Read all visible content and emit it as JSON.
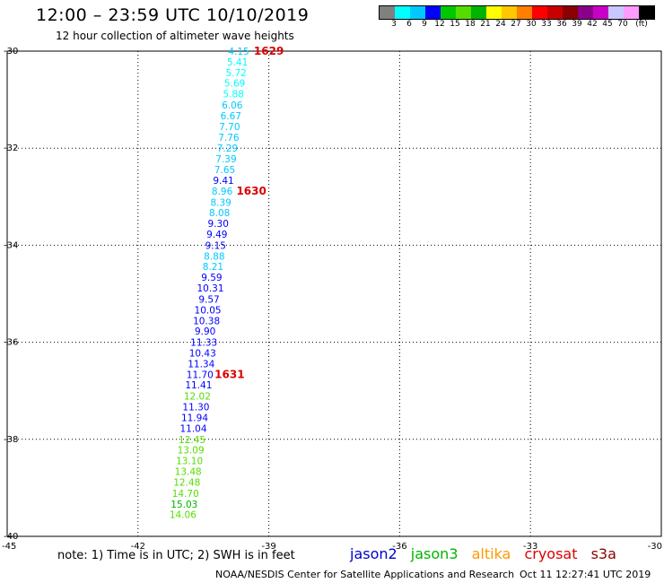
{
  "header": {
    "title": "12:00 – 23:59 UTC 10/10/2019",
    "subtitle": "12 hour collection of altimeter wave heights"
  },
  "legend": {
    "colors": [
      "#808080",
      "#00ffff",
      "#00c8ff",
      "#0000ff",
      "#00c800",
      "#55dd00",
      "#00b400",
      "#ffff00",
      "#ffc800",
      "#ff7f00",
      "#ff0000",
      "#c80000",
      "#8b0000",
      "#8b008b",
      "#c800c8",
      "#c8c8ff",
      "#ff9bff",
      "#000000"
    ],
    "labels": [
      "3",
      "6",
      "9",
      "12",
      "15",
      "18",
      "21",
      "24",
      "27",
      "30",
      "33",
      "36",
      "39",
      "42",
      "45",
      "70",
      "(ft)"
    ]
  },
  "chart_data": {
    "type": "scatter",
    "xlim": [
      -45,
      -30
    ],
    "ylim": [
      -40,
      -30
    ],
    "x_ticks": [
      "-42",
      "-39",
      "-36",
      "-33"
    ],
    "y_ticks": [
      "-30",
      "-32",
      "-34",
      "-36",
      "-38",
      "-40"
    ],
    "corner_labels": {
      "left": "-45",
      "right": "-30"
    },
    "points": [
      {
        "lon": -39.69,
        "lat": -30.0,
        "swh": "4.15",
        "color": "#00c8ff"
      },
      {
        "lon": -39.72,
        "lat": -30.22,
        "swh": "5.41",
        "color": "#00ffff"
      },
      {
        "lon": -39.75,
        "lat": -30.44,
        "swh": "5.72",
        "color": "#00ffff"
      },
      {
        "lon": -39.78,
        "lat": -30.66,
        "swh": "5.69",
        "color": "#00ffff"
      },
      {
        "lon": -39.81,
        "lat": -30.88,
        "swh": "5.88",
        "color": "#00ffff"
      },
      {
        "lon": -39.84,
        "lat": -31.11,
        "swh": "6.06",
        "color": "#00c8ff"
      },
      {
        "lon": -39.87,
        "lat": -31.33,
        "swh": "6.67",
        "color": "#00c8ff"
      },
      {
        "lon": -39.9,
        "lat": -31.55,
        "swh": "7.70",
        "color": "#00c8ff"
      },
      {
        "lon": -39.92,
        "lat": -31.77,
        "swh": "7.76",
        "color": "#00c8ff"
      },
      {
        "lon": -39.95,
        "lat": -32.0,
        "swh": "7.29",
        "color": "#00c8ff"
      },
      {
        "lon": -39.98,
        "lat": -32.22,
        "swh": "7.39",
        "color": "#00c8ff"
      },
      {
        "lon": -40.01,
        "lat": -32.44,
        "swh": "7.65",
        "color": "#00c8ff"
      },
      {
        "lon": -40.04,
        "lat": -32.66,
        "swh": "9.41",
        "color": "#0000ff"
      },
      {
        "lon": -40.07,
        "lat": -32.88,
        "swh": "8.96",
        "color": "#00c8ff"
      },
      {
        "lon": -40.1,
        "lat": -33.11,
        "swh": "8.39",
        "color": "#00c8ff"
      },
      {
        "lon": -40.13,
        "lat": -33.33,
        "swh": "8.08",
        "color": "#00c8ff"
      },
      {
        "lon": -40.16,
        "lat": -33.55,
        "swh": "9.30",
        "color": "#0000ff"
      },
      {
        "lon": -40.19,
        "lat": -33.77,
        "swh": "9.49",
        "color": "#0000ff"
      },
      {
        "lon": -40.22,
        "lat": -34.0,
        "swh": "9.15",
        "color": "#0000ff"
      },
      {
        "lon": -40.25,
        "lat": -34.22,
        "swh": "8.88",
        "color": "#00c8ff"
      },
      {
        "lon": -40.28,
        "lat": -34.44,
        "swh": "8.21",
        "color": "#00c8ff"
      },
      {
        "lon": -40.31,
        "lat": -34.66,
        "swh": "9.59",
        "color": "#0000ff"
      },
      {
        "lon": -40.34,
        "lat": -34.88,
        "swh": "10.31",
        "color": "#0000ff"
      },
      {
        "lon": -40.37,
        "lat": -35.11,
        "swh": "9.57",
        "color": "#0000ff"
      },
      {
        "lon": -40.4,
        "lat": -35.33,
        "swh": "10.05",
        "color": "#0000ff"
      },
      {
        "lon": -40.43,
        "lat": -35.55,
        "swh": "10.38",
        "color": "#0000ff"
      },
      {
        "lon": -40.46,
        "lat": -35.77,
        "swh": "9.90",
        "color": "#0000ff"
      },
      {
        "lon": -40.49,
        "lat": -36.0,
        "swh": "11.33",
        "color": "#0000ff"
      },
      {
        "lon": -40.52,
        "lat": -36.22,
        "swh": "10.43",
        "color": "#0000ff"
      },
      {
        "lon": -40.55,
        "lat": -36.44,
        "swh": "11.34",
        "color": "#0000ff"
      },
      {
        "lon": -40.58,
        "lat": -36.66,
        "swh": "11.70",
        "color": "#0000ff"
      },
      {
        "lon": -40.61,
        "lat": -36.88,
        "swh": "11.41",
        "color": "#0000ff"
      },
      {
        "lon": -40.64,
        "lat": -37.11,
        "swh": "12.02",
        "color": "#55dd00"
      },
      {
        "lon": -40.67,
        "lat": -37.33,
        "swh": "11.30",
        "color": "#0000ff"
      },
      {
        "lon": -40.7,
        "lat": -37.55,
        "swh": "11.94",
        "color": "#0000ff"
      },
      {
        "lon": -40.73,
        "lat": -37.77,
        "swh": "11.04",
        "color": "#0000ff"
      },
      {
        "lon": -40.76,
        "lat": -38.0,
        "swh": "12.45",
        "color": "#55dd00"
      },
      {
        "lon": -40.79,
        "lat": -38.22,
        "swh": "13.09",
        "color": "#55dd00"
      },
      {
        "lon": -40.82,
        "lat": -38.44,
        "swh": "13.10",
        "color": "#55dd00"
      },
      {
        "lon": -40.85,
        "lat": -38.66,
        "swh": "13.48",
        "color": "#55dd00"
      },
      {
        "lon": -40.88,
        "lat": -38.88,
        "swh": "12.48",
        "color": "#55dd00"
      },
      {
        "lon": -40.91,
        "lat": -39.11,
        "swh": "14.70",
        "color": "#55dd00"
      },
      {
        "lon": -40.94,
        "lat": -39.33,
        "swh": "15.03",
        "color": "#00b400"
      },
      {
        "lon": -40.97,
        "lat": -39.55,
        "swh": "14.06",
        "color": "#55dd00"
      }
    ],
    "time_labels": [
      {
        "text": "1629",
        "lon": -39.0,
        "lat": -30.0,
        "color": "#dd0000"
      },
      {
        "text": "1630",
        "lon": -39.4,
        "lat": -32.88,
        "color": "#dd0000"
      },
      {
        "text": "1631",
        "lon": -39.9,
        "lat": -36.66,
        "color": "#dd0000"
      }
    ]
  },
  "footer": {
    "note": "note: 1) Time is in UTC; 2) SWH is in feet",
    "satellites": [
      {
        "name": "jason2",
        "color": "#0000cc"
      },
      {
        "name": "jason3",
        "color": "#00b400"
      },
      {
        "name": "altika",
        "color": "#ff9900"
      },
      {
        "name": "cryosat",
        "color": "#dd0000"
      },
      {
        "name": "s3a",
        "color": "#8b0000"
      }
    ],
    "credit": "NOAA/NESDIS Center for Satellite Applications and Research",
    "timestamp": "Oct 11 12:27:41 UTC 2019"
  }
}
